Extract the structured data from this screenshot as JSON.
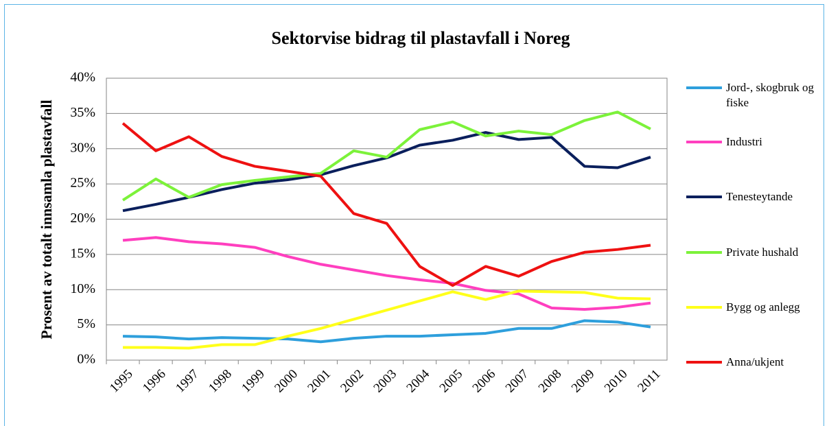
{
  "chart_data": {
    "type": "line",
    "title": "Sektorvise bidrag til plastavfall i Noreg",
    "y_label": "Prosent av totalt innsamla plastavfall",
    "categories": [
      "1995",
      "1996",
      "1997",
      "1998",
      "1999",
      "2000",
      "2001",
      "2002",
      "2003",
      "2004",
      "2005",
      "2006",
      "2007",
      "2008",
      "2009",
      "2010",
      "2011"
    ],
    "ylim": [
      0,
      40
    ],
    "yticks": [
      {
        "value": 0,
        "label": "0%"
      },
      {
        "value": 5,
        "label": "5%"
      },
      {
        "value": 10,
        "label": "10%"
      },
      {
        "value": 15,
        "label": "15%"
      },
      {
        "value": 20,
        "label": "20%"
      },
      {
        "value": 25,
        "label": "25%"
      },
      {
        "value": 30,
        "label": "30%"
      },
      {
        "value": 35,
        "label": "35%"
      },
      {
        "value": 40,
        "label": "40%"
      }
    ],
    "grid": true,
    "legend": "right",
    "series": [
      {
        "name": "Jord-, skogbruk og fiske",
        "color": "#2e9fdc",
        "values": [
          3.4,
          3.3,
          3.0,
          3.2,
          3.1,
          3.0,
          2.6,
          3.1,
          3.4,
          3.4,
          3.6,
          3.8,
          4.5,
          4.5,
          5.6,
          5.4,
          4.7
        ]
      },
      {
        "name": "Industri",
        "color": "#ff3fbf",
        "values": [
          17.0,
          17.4,
          16.8,
          16.5,
          16.0,
          14.7,
          13.6,
          12.8,
          12.0,
          11.4,
          10.9,
          9.9,
          9.4,
          7.4,
          7.2,
          7.5,
          8.1
        ]
      },
      {
        "name": "Tenesteytande",
        "color": "#0a1f5c",
        "values": [
          21.2,
          22.1,
          23.1,
          24.2,
          25.1,
          25.6,
          26.3,
          27.6,
          28.7,
          30.5,
          31.2,
          32.3,
          31.3,
          31.6,
          27.5,
          27.3,
          28.8
        ]
      },
      {
        "name": "Private hushald",
        "color": "#7cf23a",
        "values": [
          22.7,
          25.7,
          23.1,
          24.9,
          25.5,
          26.0,
          26.5,
          29.7,
          28.8,
          32.7,
          33.8,
          31.8,
          32.5,
          32.0,
          34.0,
          35.2,
          32.8
        ]
      },
      {
        "name": "Bygg og anlegg",
        "color": "#ffff1a",
        "values": [
          1.8,
          1.8,
          1.7,
          2.2,
          2.2,
          3.4,
          4.5,
          5.8,
          7.1,
          8.4,
          9.7,
          8.6,
          9.8,
          9.7,
          9.6,
          8.8,
          8.7
        ]
      },
      {
        "name": "Anna/ukjent",
        "color": "#ee1111",
        "values": [
          33.6,
          29.7,
          31.7,
          28.9,
          27.5,
          26.8,
          26.1,
          20.8,
          19.4,
          13.3,
          10.6,
          13.3,
          11.9,
          14.0,
          15.3,
          15.7,
          16.3
        ]
      }
    ]
  }
}
